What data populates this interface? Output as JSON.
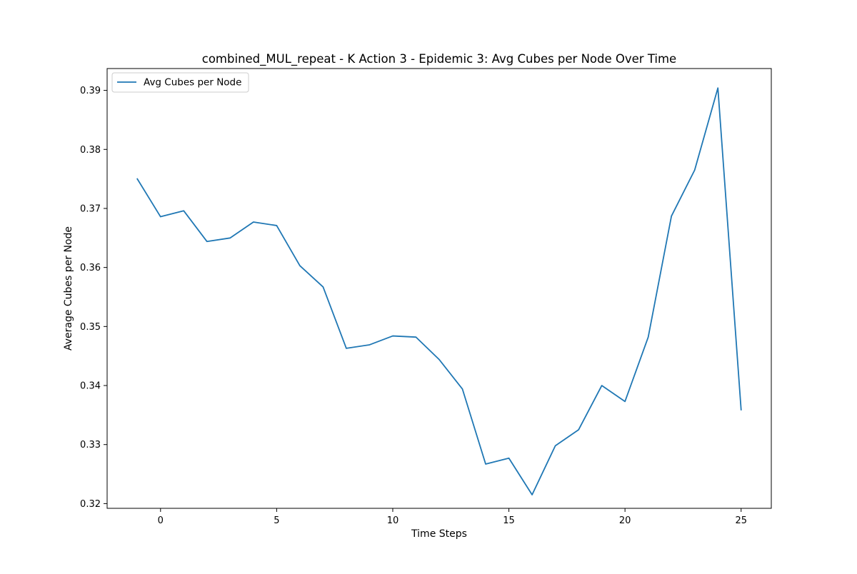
{
  "chart_data": {
    "type": "line",
    "title": "combined_MUL_repeat - K Action 3 - Epidemic 3: Avg Cubes per Node Over Time",
    "xlabel": "Time Steps",
    "ylabel": "Average Cubes per Node",
    "xlim": [
      -2.3,
      26.3
    ],
    "ylim": [
      0.3192,
      0.3937
    ],
    "x_ticks": [
      0,
      5,
      10,
      15,
      20,
      25
    ],
    "y_ticks": [
      0.32,
      0.33,
      0.34,
      0.35,
      0.36,
      0.37,
      0.38,
      0.39
    ],
    "grid": false,
    "legend_position": "upper left",
    "series": [
      {
        "name": "Avg Cubes per Node",
        "color": "#1f77b4",
        "x": [
          -1,
          0,
          1,
          2,
          3,
          4,
          5,
          6,
          7,
          8,
          9,
          10,
          11,
          12,
          13,
          14,
          15,
          16,
          17,
          18,
          19,
          20,
          21,
          22,
          23,
          24,
          25
        ],
        "values": [
          0.375,
          0.3686,
          0.3696,
          0.3644,
          0.365,
          0.3677,
          0.3671,
          0.3603,
          0.3567,
          0.3463,
          0.3469,
          0.3484,
          0.3482,
          0.3444,
          0.3394,
          0.3267,
          0.3277,
          0.3215,
          0.3298,
          0.3325,
          0.34,
          0.3373,
          0.3482,
          0.3687,
          0.3765,
          0.3904,
          0.3359
        ]
      }
    ]
  }
}
